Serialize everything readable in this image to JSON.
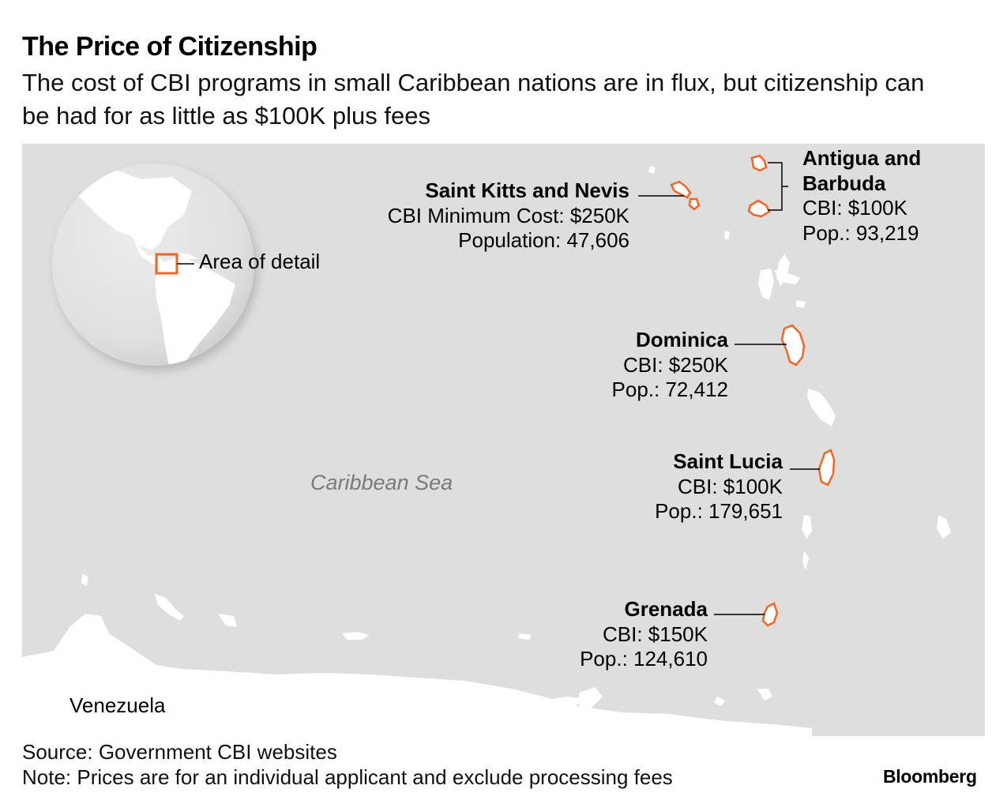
{
  "header": {
    "title": "The Price of Citizenship",
    "subtitle": "The cost of CBI programs in small Caribbean nations are in flux, but citizenship can be had for as little as $100K plus fees"
  },
  "map": {
    "inset_label": "Area of detail",
    "sea_label": "Caribbean Sea",
    "country_label": "Venezuela",
    "colors": {
      "land": "#ffffff",
      "sea": "#dedede",
      "highlight": "#f26522",
      "globe_ocean": "#e3e3e3"
    },
    "countries": [
      {
        "name": "Saint Kitts and Nevis",
        "cost": "CBI Minimum Cost: $250K",
        "population": "Population: 47,606"
      },
      {
        "name": "Antigua and Barbuda",
        "name_line1": "Antigua and",
        "name_line2": "Barbuda",
        "cost": "CBI: $100K",
        "population": "Pop.: 93,219"
      },
      {
        "name": "Dominica",
        "cost": "CBI: $250K",
        "population": "Pop.: 72,412"
      },
      {
        "name": "Saint Lucia",
        "cost": "CBI: $100K",
        "population": "Pop.: 179,651"
      },
      {
        "name": "Grenada",
        "cost": "CBI: $150K",
        "population": "Pop.: 124,610"
      }
    ]
  },
  "footer": {
    "source": "Source: Government CBI websites",
    "note": "Note: Prices are for an individual applicant and exclude processing fees",
    "brand": "Bloomberg"
  }
}
